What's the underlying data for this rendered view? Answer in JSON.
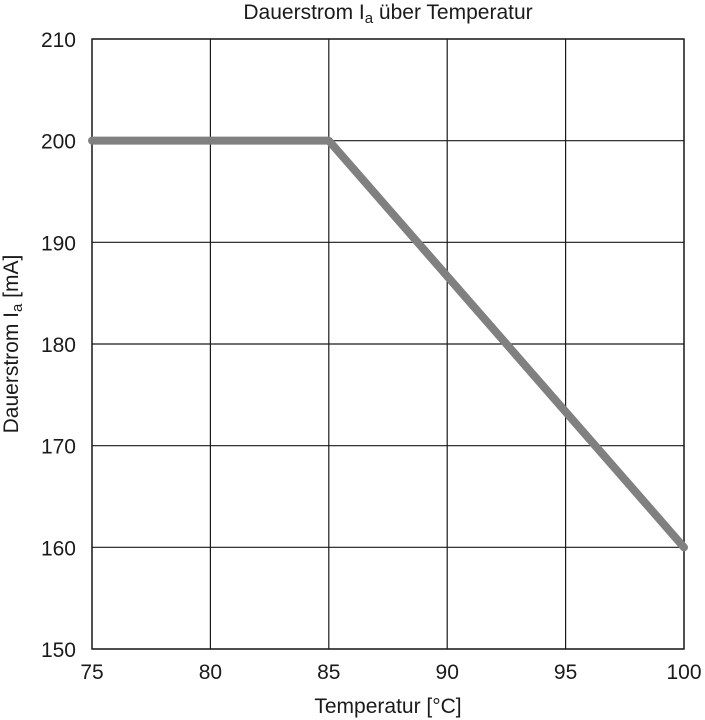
{
  "chart_data": {
    "type": "line",
    "title": {
      "main": "Dauerstrom I",
      "sub": "a",
      "rest": " über Temperatur"
    },
    "xlabel": "Temperatur [°C]",
    "ylabel": {
      "main": "Dauerstrom I",
      "sub": "a",
      "rest": " [mA]"
    },
    "xlim": [
      75,
      100
    ],
    "ylim": [
      150,
      210
    ],
    "x_ticks": [
      75,
      80,
      85,
      90,
      95,
      100
    ],
    "y_ticks": [
      150,
      160,
      170,
      180,
      190,
      200,
      210
    ],
    "grid": true,
    "legend": "none",
    "series": [
      {
        "x": [
          75,
          85,
          100
        ],
        "y": [
          200,
          200,
          160
        ],
        "color": "#808080"
      }
    ]
  }
}
